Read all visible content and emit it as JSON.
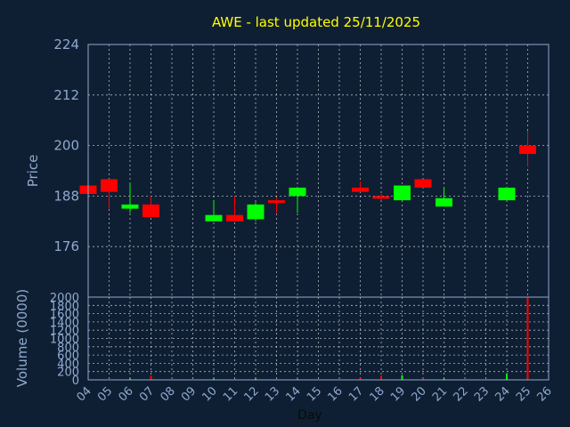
{
  "chart_data": [
    {
      "type": "candlestick",
      "title": "AWE - last updated 25/11/2025",
      "ylabel": "Price",
      "ylim": [
        164,
        224
      ],
      "yticks": [
        "176",
        "188",
        "200",
        "212",
        "224"
      ],
      "grid": true,
      "up_color": "#00ff00",
      "down_color": "#ff0000",
      "candles": [
        {
          "day": "04",
          "open": 190.5,
          "high": 190.5,
          "low": 188.5,
          "close": 188.5
        },
        {
          "day": "05",
          "open": 192.0,
          "high": 192.0,
          "low": 185.0,
          "close": 189.0
        },
        {
          "day": "06",
          "open": 185.0,
          "high": 191.0,
          "low": 184.0,
          "close": 186.0
        },
        {
          "day": "07",
          "open": 186.0,
          "high": 188.0,
          "low": 183.0,
          "close": 183.0
        },
        {
          "day": "10",
          "open": 182.0,
          "high": 187.0,
          "low": 182.0,
          "close": 183.5
        },
        {
          "day": "11",
          "open": 183.5,
          "high": 188.0,
          "low": 182.0,
          "close": 182.0
        },
        {
          "day": "12",
          "open": 182.5,
          "high": 186.5,
          "low": 182.0,
          "close": 186.0
        },
        {
          "day": "13",
          "open": 187.0,
          "high": 187.5,
          "low": 184.0,
          "close": 186.5
        },
        {
          "day": "14",
          "open": 188.0,
          "high": 190.0,
          "low": 184.0,
          "close": 190.0
        },
        {
          "day": "17",
          "open": 190.0,
          "high": 191.5,
          "low": 189.0,
          "close": 189.0
        },
        {
          "day": "18",
          "open": 188.0,
          "high": 188.5,
          "low": 187.0,
          "close": 187.5
        },
        {
          "day": "19",
          "open": 187.0,
          "high": 190.5,
          "low": 187.0,
          "close": 190.5
        },
        {
          "day": "20",
          "open": 192.0,
          "high": 192.0,
          "low": 190.0,
          "close": 190.0
        },
        {
          "day": "21",
          "open": 185.5,
          "high": 190.0,
          "low": 185.5,
          "close": 187.5
        },
        {
          "day": "24",
          "open": 187.0,
          "high": 190.0,
          "low": 187.0,
          "close": 190.0
        },
        {
          "day": "25",
          "open": 200.0,
          "high": 203.5,
          "low": 195.0,
          "close": 198.0
        }
      ]
    },
    {
      "type": "bar",
      "ylabel": "Volume (0000)",
      "xlabel": "Day",
      "ylim": [
        0,
        2000
      ],
      "yticks": [
        "0",
        "200",
        "400",
        "600",
        "800",
        "1000",
        "1200",
        "1400",
        "1600",
        "1800",
        "2000"
      ],
      "categories": [
        "04",
        "05",
        "06",
        "07",
        "08",
        "09",
        "10",
        "11",
        "12",
        "13",
        "14",
        "15",
        "16",
        "17",
        "18",
        "19",
        "20",
        "21",
        "22",
        "23",
        "24",
        "25",
        "26"
      ],
      "volumes": [
        {
          "day": "04",
          "value": 0,
          "color": "#ff0000"
        },
        {
          "day": "05",
          "value": 0,
          "color": "#ff0000"
        },
        {
          "day": "06",
          "value": 30,
          "color": "#00ff00"
        },
        {
          "day": "07",
          "value": 100,
          "color": "#ff0000"
        },
        {
          "day": "10",
          "value": 30,
          "color": "#00ff00"
        },
        {
          "day": "11",
          "value": 20,
          "color": "#ff0000"
        },
        {
          "day": "12",
          "value": 30,
          "color": "#00ff00"
        },
        {
          "day": "13",
          "value": 20,
          "color": "#ff0000"
        },
        {
          "day": "14",
          "value": 20,
          "color": "#00ff00"
        },
        {
          "day": "17",
          "value": 50,
          "color": "#ff0000"
        },
        {
          "day": "18",
          "value": 100,
          "color": "#ff0000"
        },
        {
          "day": "19",
          "value": 110,
          "color": "#00ff00"
        },
        {
          "day": "20",
          "value": 30,
          "color": "#ff0000"
        },
        {
          "day": "21",
          "value": 30,
          "color": "#00ff00"
        },
        {
          "day": "24",
          "value": 140,
          "color": "#00ff00"
        },
        {
          "day": "25",
          "value": 2000,
          "color": "#ff0000"
        }
      ]
    }
  ]
}
